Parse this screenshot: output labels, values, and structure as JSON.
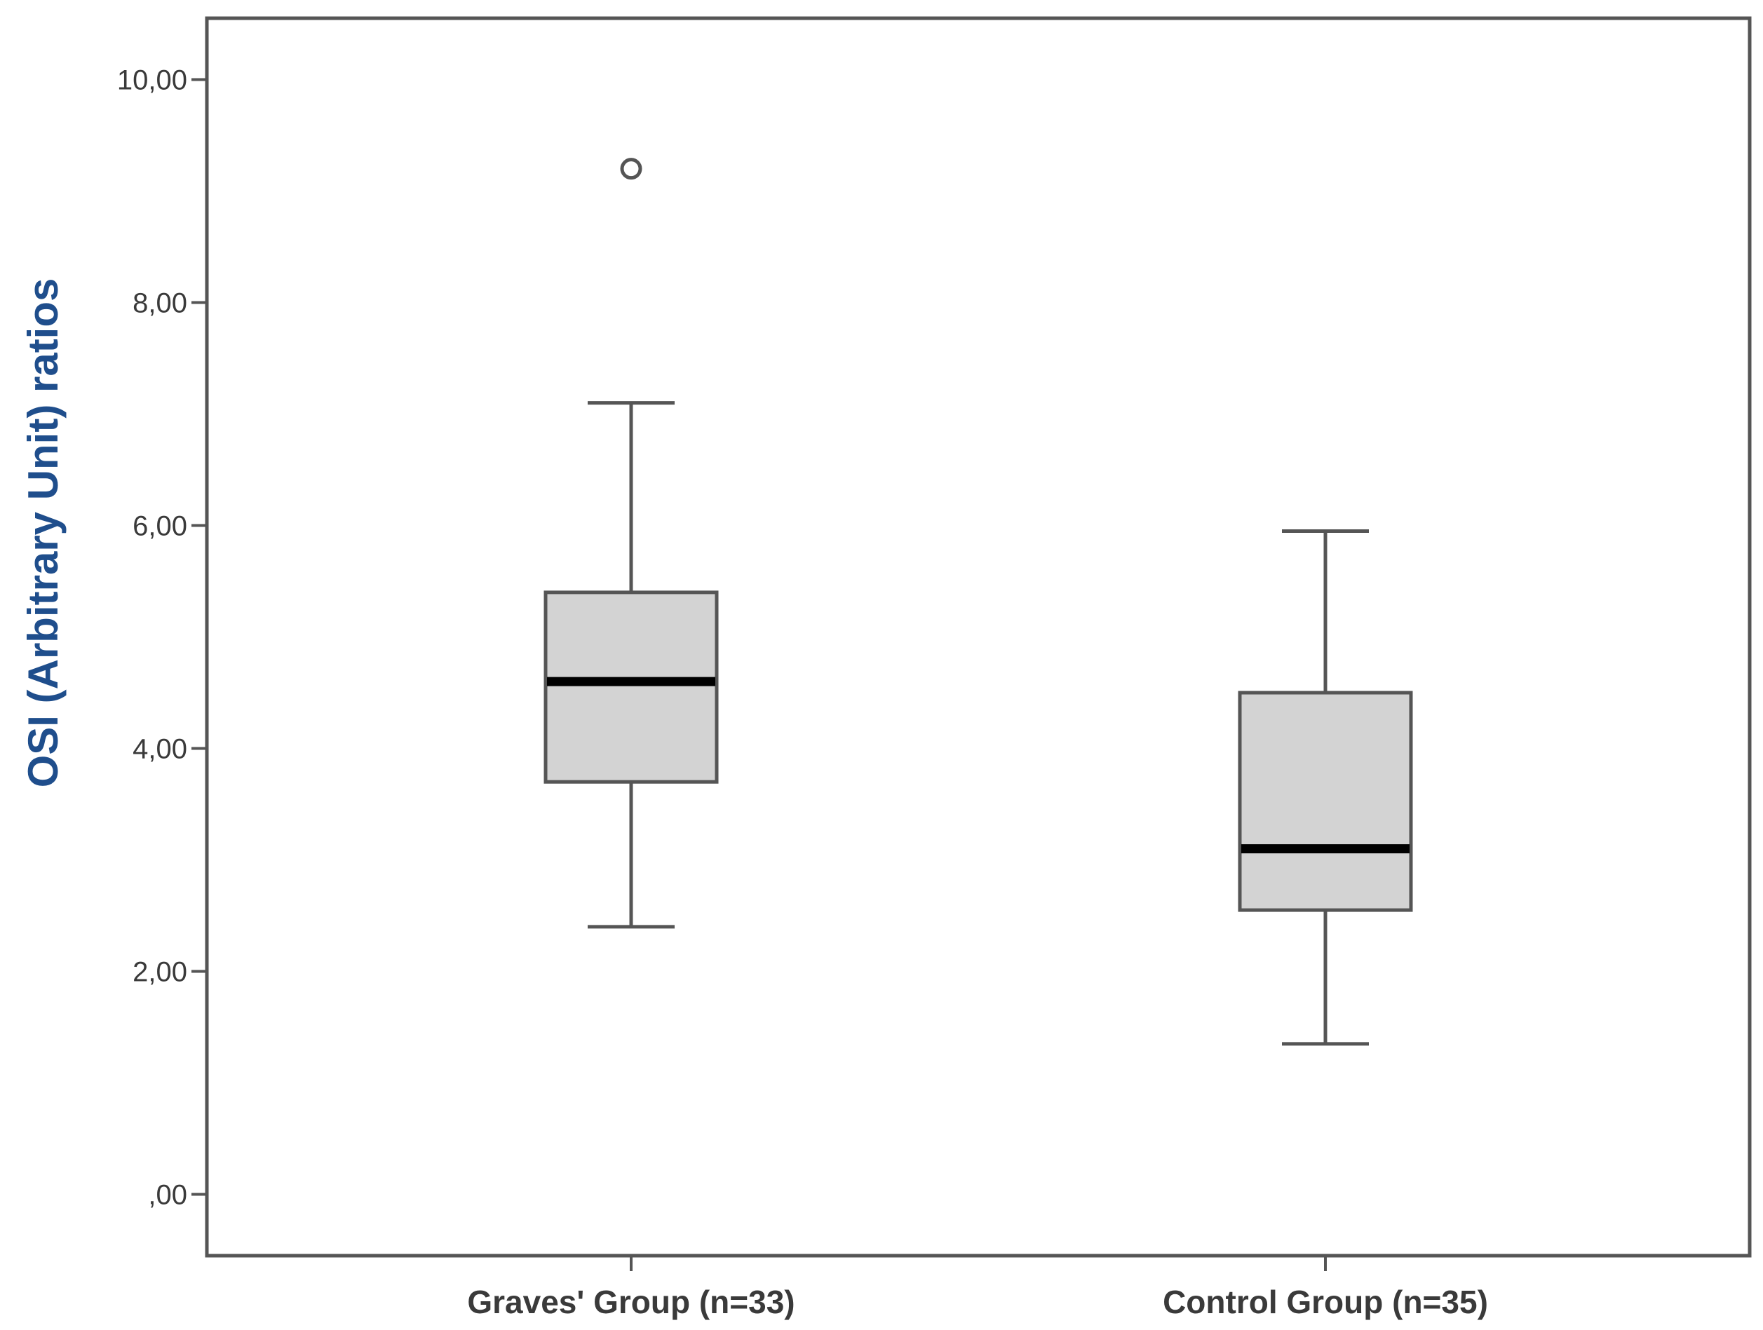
{
  "chart_data": {
    "type": "boxplot",
    "title": "",
    "xlabel": "",
    "ylabel": "OSI (Arbitrary Unit) ratios",
    "ylim": [
      -0.55,
      10.55
    ],
    "y_ticks": [
      {
        "value": 0,
        "label": ",00"
      },
      {
        "value": 2,
        "label": "2,00"
      },
      {
        "value": 4,
        "label": "4,00"
      },
      {
        "value": 6,
        "label": "6,00"
      },
      {
        "value": 8,
        "label": "8,00"
      },
      {
        "value": 10,
        "label": "10,00"
      }
    ],
    "categories": [
      "Graves' Group (n=33)",
      "Control Group (n=35)"
    ],
    "boxes": [
      {
        "name": "Graves' Group (n=33)",
        "whisker_low": 2.4,
        "q1": 3.7,
        "median": 4.6,
        "q3": 5.4,
        "whisker_high": 7.1,
        "outliers": [
          9.2
        ]
      },
      {
        "name": "Control Group (n=35)",
        "whisker_low": 1.35,
        "q1": 2.55,
        "median": 3.1,
        "q3": 4.5,
        "whisker_high": 5.95,
        "outliers": []
      }
    ],
    "grid": false,
    "colors": {
      "box_fill": "#d3d3d3",
      "box_stroke": "#555555",
      "median": "#000000",
      "axis": "#555555",
      "ylabel": "#1f4e8c"
    }
  }
}
